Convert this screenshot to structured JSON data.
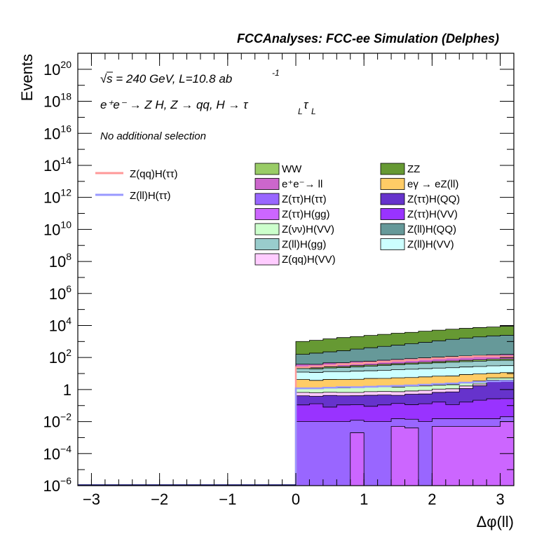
{
  "chart_data": {
    "type": "area",
    "title": "FCCAnalyses: FCC-ee Simulation (Delphes)",
    "xlabel": "Δφ(ll)",
    "ylabel": "Events",
    "xlim": [
      -3.2,
      3.2
    ],
    "ylim": [
      1e-06,
      1e+21
    ],
    "yscale": "log",
    "grid": false,
    "x_ticks": [
      -3,
      -2,
      -1,
      0,
      1,
      2,
      3
    ],
    "x_tick_labels": [
      "−3",
      "−2",
      "−1",
      "0",
      "1",
      "2",
      "3"
    ],
    "y_ticks": [
      {
        "value": 1e-06,
        "base": "10",
        "exp": "−6"
      },
      {
        "value": 0.0001,
        "base": "10",
        "exp": "−4"
      },
      {
        "value": 0.01,
        "base": "10",
        "exp": "−2"
      },
      {
        "value": 1,
        "base": "1",
        "exp": ""
      },
      {
        "value": 100,
        "base": "10",
        "exp": "2"
      },
      {
        "value": 10000.0,
        "base": "10",
        "exp": "4"
      },
      {
        "value": 1000000.0,
        "base": "10",
        "exp": "6"
      },
      {
        "value": 100000000.0,
        "base": "10",
        "exp": "8"
      },
      {
        "value": 10000000000.0,
        "base": "10",
        "exp": "10"
      },
      {
        "value": 1000000000000.0,
        "base": "10",
        "exp": "12"
      },
      {
        "value": 100000000000000.0,
        "base": "10",
        "exp": "14"
      },
      {
        "value": 1e+16,
        "base": "10",
        "exp": "16"
      },
      {
        "value": 1e+18,
        "base": "10",
        "exp": "18"
      },
      {
        "value": 1e+20,
        "base": "10",
        "exp": "20"
      }
    ],
    "annotations": {
      "sqrt_symbol": "√",
      "energy": "s = 240 GeV, L=10.8 ab",
      "energy_sup": "-1",
      "process": "e⁺e⁻ → Z H, Z → qq, H → τ",
      "process_sub1": "L",
      "process_tau": "τ",
      "process_sub2": "L",
      "selection": "No additional selection"
    },
    "bin_edges": [
      0,
      0.2,
      0.4,
      0.6,
      0.8,
      1.0,
      1.2,
      1.4,
      1.6,
      1.8,
      2.0,
      2.2,
      2.4,
      2.6,
      2.8,
      3.0,
      3.2
    ],
    "stack_order_bottom_to_top": [
      "Z(ττ)H(gg)",
      "Z(ττ)H(ττ)",
      "Z(ττ)H(VV)",
      "Z(ττ)H(QQ)",
      "Z(qq)H(VV)",
      "Z(νν)H(VV)",
      "eγ → eZ(ll)",
      "Z(ll)H(VV)",
      "Z(ll)H(gg)",
      "WW",
      "e⁺e⁻→ ll",
      "Z(ll)H(QQ)",
      "ZZ"
    ],
    "series": [
      {
        "name": "Z(ττ)H(gg)",
        "color": "#cc66ff",
        "values": [
          1e-06,
          1e-06,
          1e-06,
          1e-06,
          0.002,
          1e-06,
          1e-06,
          0.005,
          0.004,
          1e-06,
          0.005,
          0.005,
          0.005,
          0.005,
          0.005,
          0.01
        ]
      },
      {
        "name": "Z(ττ)H(ττ)",
        "color": "#9966ff",
        "values": [
          0.01,
          0.01,
          0.01,
          0.01,
          0.01,
          0.01,
          0.01,
          0.01,
          0.01,
          0.01,
          0.01,
          0.01,
          0.01,
          0.01,
          0.01,
          0.01
        ]
      },
      {
        "name": "Z(ττ)H(VV)",
        "color": "#9933ff",
        "values": [
          0.1,
          0.12,
          0.07,
          0.1,
          0.1,
          0.08,
          0.1,
          0.12,
          0.1,
          0.12,
          0.15,
          0.1,
          0.15,
          0.2,
          0.25,
          0.25
        ]
      },
      {
        "name": "Z(ττ)H(QQ)",
        "color": "#6633cc",
        "values": [
          0.3,
          0.25,
          0.35,
          0.3,
          0.3,
          0.35,
          0.35,
          0.3,
          0.4,
          0.4,
          0.5,
          0.6,
          1.0,
          1.5,
          3.0,
          3.0
        ]
      },
      {
        "name": "Z(qq)H(VV)",
        "color": "#ffccff",
        "values": [
          0.25,
          0.25,
          0.25,
          0.25,
          0.25,
          0.3,
          0.3,
          0.3,
          0.3,
          0.35,
          0.4,
          0.4,
          0.5,
          0.5,
          0.6,
          0.6
        ]
      },
      {
        "name": "Z(νν)H(VV)",
        "color": "#ccffcc",
        "values": [
          0.6,
          0.6,
          0.6,
          0.6,
          0.7,
          0.7,
          0.7,
          0.7,
          0.8,
          0.8,
          0.8,
          0.9,
          1.0,
          1.2,
          1.5,
          1.5
        ]
      },
      {
        "name": "eγ → eZ(ll)",
        "color": "#ffcc66",
        "values": [
          3,
          2.5,
          3,
          3,
          3,
          3.5,
          3.5,
          4,
          4,
          4.5,
          5,
          5,
          6,
          6,
          5,
          6
        ]
      },
      {
        "name": "Z(ll)H(VV)",
        "color": "#ccffff",
        "values": [
          8,
          8,
          9,
          9,
          10,
          10,
          11,
          12,
          13,
          14,
          15,
          16,
          17,
          18,
          20,
          20
        ]
      },
      {
        "name": "Z(ll)H(gg)",
        "color": "#99cccc",
        "values": [
          8,
          8,
          9,
          10,
          12,
          14,
          16,
          18,
          20,
          22,
          25,
          28,
          30,
          32,
          35,
          35
        ]
      },
      {
        "name": "WW",
        "color": "#99cc66",
        "values": [
          3,
          3,
          4,
          4,
          5,
          5,
          6,
          6,
          7,
          8,
          9,
          10,
          11,
          12,
          13,
          14
        ]
      },
      {
        "name": "e⁺e⁻→ ll",
        "color": "#cc66cc",
        "values": [
          15,
          15,
          20,
          20,
          25,
          25,
          30,
          35,
          40,
          45,
          50,
          55,
          60,
          65,
          70,
          75
        ]
      },
      {
        "name": "Z(ll)H(QQ)",
        "color": "#669999",
        "values": [
          120,
          150,
          180,
          220,
          280,
          350,
          430,
          520,
          650,
          800,
          1000,
          1250,
          1500,
          1800,
          2100,
          2300
        ]
      },
      {
        "name": "ZZ",
        "color": "#669933",
        "values": [
          850,
          1000,
          1250,
          1500,
          1700,
          2000,
          2300,
          2700,
          3000,
          3500,
          4000,
          4500,
          5000,
          5500,
          5800,
          6500
        ]
      }
    ],
    "overlay_lines": [
      {
        "name": "Z(qq)H(ττ)",
        "color": "#ff9999",
        "values": [
          25,
          28,
          32,
          38,
          42,
          48,
          55,
          62,
          70,
          80,
          90,
          100,
          110,
          120,
          120,
          115
        ]
      },
      {
        "name": "Z(ll)H(ττ)",
        "color": "#9999ff",
        "values": [
          1.2,
          1.2,
          1.3,
          1.4,
          1.4,
          1.5,
          1.6,
          1.7,
          1.8,
          2.0,
          2.2,
          2.4,
          2.7,
          3.0,
          3.3,
          3.5
        ]
      }
    ],
    "legend": {
      "lines": [
        "Z(qq)H(ττ)",
        "Z(ll)H(ττ)"
      ],
      "fill_col1": [
        "WW",
        "e⁺e⁻→ ll",
        "Z(ττ)H(ττ)",
        "Z(ττ)H(gg)",
        "Z(νν)H(VV)",
        "Z(ll)H(gg)",
        "Z(qq)H(VV)"
      ],
      "fill_col2": [
        "ZZ",
        "eγ → eZ(ll)",
        "Z(ττ)H(QQ)",
        "Z(ττ)H(VV)",
        "Z(ll)H(QQ)",
        "Z(ll)H(VV)"
      ]
    }
  }
}
